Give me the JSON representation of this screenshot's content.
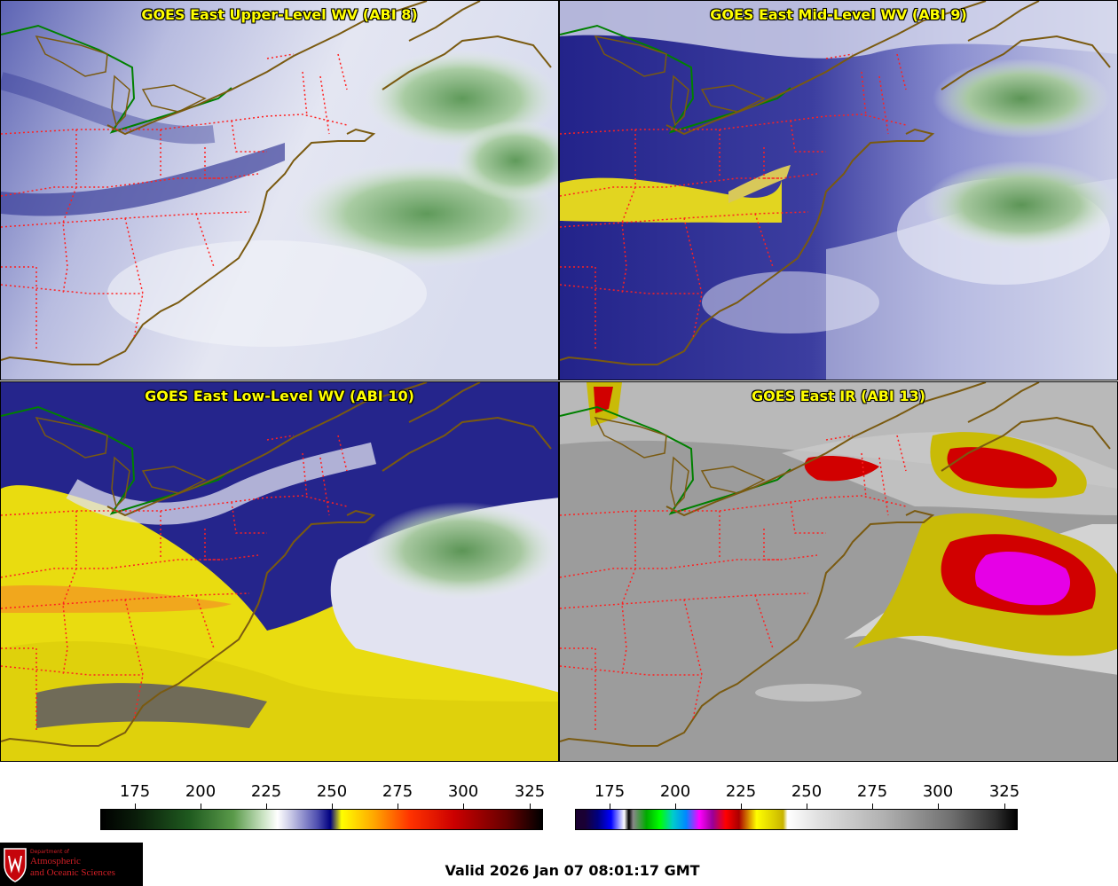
{
  "panels": {
    "upper": {
      "title": "GOES East Upper-Level WV (ABI 8)"
    },
    "mid": {
      "title": "GOES East Mid-Level WV (ABI 9)"
    },
    "low": {
      "title": "GOES East Low-Level WV (ABI 10)"
    },
    "ir": {
      "title": "GOES East IR (ABI 13)"
    }
  },
  "colorbars": {
    "wv": {
      "ticks": [
        "175",
        "200",
        "225",
        "250",
        "275",
        "300",
        "325"
      ]
    },
    "ir": {
      "ticks": [
        "175",
        "200",
        "225",
        "250",
        "275",
        "300",
        "325"
      ]
    }
  },
  "logo": {
    "dept": "Department of",
    "line1": "Atmospheric",
    "line2": "and Oceanic Sciences"
  },
  "valid_time": "Valid 2026 Jan 07 08:01:17 GMT",
  "colors": {
    "title": "#ffff00",
    "state_borders": "#ff2020",
    "coastline": "#7a5a10",
    "intl_border": "#008000"
  }
}
